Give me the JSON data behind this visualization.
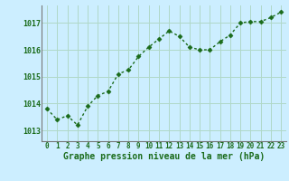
{
  "x": [
    0,
    1,
    2,
    3,
    4,
    5,
    6,
    7,
    8,
    9,
    10,
    11,
    12,
    13,
    14,
    15,
    16,
    17,
    18,
    19,
    20,
    21,
    22,
    23
  ],
  "y": [
    1013.8,
    1013.4,
    1013.55,
    1013.2,
    1013.9,
    1014.3,
    1014.45,
    1015.1,
    1015.25,
    1015.75,
    1016.1,
    1016.4,
    1016.7,
    1016.5,
    1016.1,
    1016.0,
    1016.0,
    1016.3,
    1016.55,
    1017.0,
    1017.05,
    1017.05,
    1017.2,
    1017.4
  ],
  "line_color": "#1a6b1a",
  "marker": "D",
  "marker_size": 2.5,
  "bg_color": "#cceeff",
  "grid_color": "#b0d8c8",
  "ylim": [
    1012.6,
    1017.65
  ],
  "yticks": [
    1013,
    1014,
    1015,
    1016,
    1017
  ],
  "xlabel": "Graphe pression niveau de la mer (hPa)",
  "xlabel_color": "#1a6b1a",
  "xlabel_fontsize": 7,
  "tick_color": "#1a6b1a",
  "ytick_fontsize": 6,
  "xtick_fontsize": 5.5,
  "line_width": 1.0,
  "spine_color": "#777777"
}
